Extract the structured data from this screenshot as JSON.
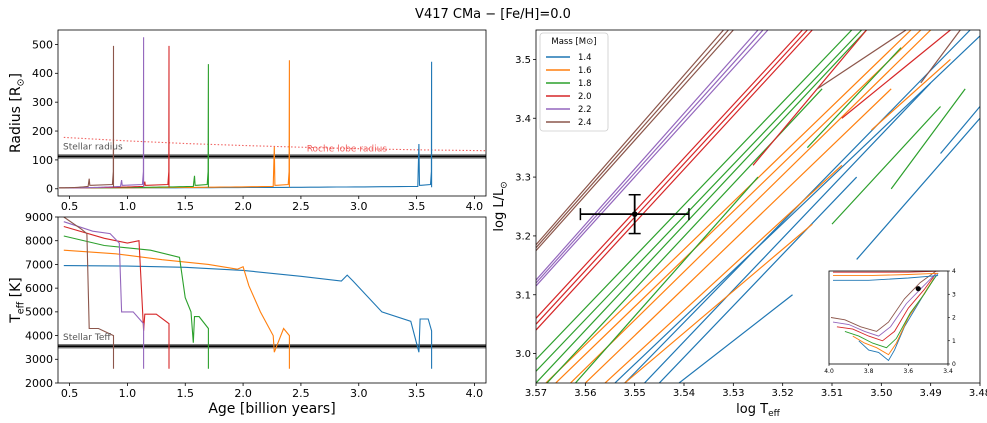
{
  "title": "V417 CMa − [Fe/H]=0.0",
  "legend": {
    "title": "Mass [M⊙]",
    "entries": [
      {
        "label": "1.4",
        "color": "#1f77b4"
      },
      {
        "label": "1.6",
        "color": "#ff7f0e"
      },
      {
        "label": "1.8",
        "color": "#2ca02c"
      },
      {
        "label": "2.0",
        "color": "#d62728"
      },
      {
        "label": "2.2",
        "color": "#9467bd"
      },
      {
        "label": "2.4",
        "color": "#8c564b"
      }
    ]
  },
  "chart_data": [
    {
      "id": "radius",
      "type": "line",
      "ylabel_main": "Radius [R",
      "ylabel_sub": "⊙",
      "ylabel_end": "]",
      "xlim": [
        0.4,
        4.1
      ],
      "ylim": [
        -25,
        550
      ],
      "xticks": [
        "0.5",
        "1.0",
        "1.5",
        "2.0",
        "2.5",
        "3.0",
        "3.5",
        "4.0"
      ],
      "yticks": [
        "0",
        "100",
        "200",
        "300",
        "400",
        "500"
      ],
      "annotations": [
        "Stellar radius",
        "Roche lobe radius"
      ],
      "stellar_radius": 112,
      "roche_lobe": {
        "x": [
          0.45,
          1.0,
          1.5,
          2.0,
          2.5,
          3.0,
          3.5,
          4.1
        ],
        "y": [
          178,
          166,
          157,
          150,
          144,
          139,
          135,
          132
        ]
      },
      "series": [
        {
          "name": "1.4",
          "end_age": 3.63,
          "spike_age": 3.52,
          "spike_value": 155,
          "max_value": 440
        },
        {
          "name": "1.6",
          "end_age": 2.4,
          "spike_age": 2.27,
          "spike_value": 145,
          "max_value": 445
        },
        {
          "name": "1.8",
          "end_age": 1.7,
          "spike_age": 1.58,
          "spike_value": 45,
          "max_value": 432
        },
        {
          "name": "2.0",
          "end_age": 1.36,
          "spike_age": 1.15,
          "spike_value": 25,
          "max_value": 495
        },
        {
          "name": "2.2",
          "end_age": 1.14,
          "spike_age": 0.95,
          "spike_value": 30,
          "max_value": 525
        },
        {
          "name": "2.4",
          "end_age": 0.88,
          "spike_age": 0.67,
          "spike_value": 35,
          "max_value": 495
        }
      ]
    },
    {
      "id": "teff",
      "type": "line",
      "ylabel_main": "T",
      "ylabel_sub": "eff",
      "ylabel_end": " [K]",
      "xlabel": "Age [billion years]",
      "xlim": [
        0.4,
        4.1
      ],
      "ylim": [
        2000,
        9000
      ],
      "xticks": [
        "0.5",
        "1.0",
        "1.5",
        "2.0",
        "2.5",
        "3.0",
        "3.5",
        "4.0"
      ],
      "yticks": [
        "2000",
        "3000",
        "4000",
        "5000",
        "6000",
        "7000",
        "8000",
        "9000"
      ],
      "annotations": [
        "Stellar Teff"
      ],
      "stellar_teff": 3550,
      "series": [
        {
          "name": "1.4",
          "x": [
            0.45,
            1.0,
            1.5,
            2.0,
            2.5,
            2.85,
            2.9,
            2.95,
            3.2,
            3.45,
            3.52,
            3.53,
            3.6,
            3.63,
            3.63
          ],
          "y": [
            6950,
            6930,
            6880,
            6750,
            6500,
            6300,
            6550,
            6300,
            5000,
            4600,
            3300,
            4700,
            4700,
            4200,
            2600
          ]
        },
        {
          "name": "1.6",
          "x": [
            0.45,
            0.9,
            1.3,
            1.7,
            1.95,
            2.0,
            2.05,
            2.15,
            2.26,
            2.27,
            2.35,
            2.4,
            2.4
          ],
          "y": [
            7600,
            7450,
            7200,
            7000,
            6800,
            6900,
            6100,
            5000,
            4000,
            3300,
            4300,
            4000,
            2600
          ]
        },
        {
          "name": "1.8",
          "x": [
            0.45,
            0.8,
            1.2,
            1.45,
            1.5,
            1.55,
            1.57,
            1.58,
            1.62,
            1.7,
            1.7
          ],
          "y": [
            8200,
            7800,
            7600,
            7300,
            5600,
            5000,
            3700,
            4800,
            4800,
            4300,
            2600
          ]
        },
        {
          "name": "2.0",
          "x": [
            0.45,
            0.8,
            1.0,
            1.1,
            1.14,
            1.15,
            1.25,
            1.36,
            1.36
          ],
          "y": [
            8600,
            8100,
            7900,
            8000,
            4200,
            4900,
            4900,
            4500,
            2600
          ]
        },
        {
          "name": "2.2",
          "x": [
            0.45,
            0.7,
            0.85,
            0.93,
            0.95,
            1.05,
            1.14,
            1.14
          ],
          "y": [
            8800,
            8400,
            8300,
            7900,
            5000,
            5000,
            4500,
            2600
          ]
        },
        {
          "name": "2.4",
          "x": [
            0.45,
            0.6,
            0.65,
            0.67,
            0.75,
            0.88,
            0.88
          ],
          "y": [
            9000,
            8500,
            8300,
            4300,
            4300,
            4000,
            2600
          ]
        }
      ]
    },
    {
      "id": "hrd",
      "type": "line",
      "xlabel_main": "log T",
      "xlabel_sub": "eff",
      "ylabel_main": "log L/L",
      "ylabel_sub": "⊙",
      "xlim": [
        3.57,
        3.48
      ],
      "ylim": [
        2.95,
        3.55
      ],
      "xticks": [
        "3.57",
        "3.56",
        "3.55",
        "3.54",
        "3.53",
        "3.52",
        "3.51",
        "3.50",
        "3.49",
        "3.48"
      ],
      "yticks": [
        "3.0",
        "3.1",
        "3.2",
        "3.3",
        "3.4",
        "3.5"
      ],
      "star": {
        "logT": 3.55,
        "logL": 3.237,
        "logT_err": 0.011,
        "logL_err": 0.033
      },
      "series": [
        {
          "name": "1.4",
          "lines": [
            [
              3.554,
              2.95,
              3.48,
              3.54
            ],
            [
              3.552,
              2.95,
              3.482,
              3.55
            ],
            [
              3.548,
              2.95,
              3.49,
              3.46
            ],
            [
              3.545,
              2.95,
              3.505,
              3.3
            ],
            [
              3.541,
              2.95,
              3.518,
              3.1
            ],
            [
              3.505,
              3.16,
              3.48,
              3.4
            ],
            [
              3.488,
              3.34,
              3.48,
              3.42
            ]
          ]
        },
        {
          "name": "1.6",
          "lines": [
            [
              3.568,
              2.95,
              3.494,
              3.55
            ],
            [
              3.566,
              2.95,
              3.492,
              3.55
            ],
            [
              3.563,
              2.95,
              3.49,
              3.55
            ],
            [
              3.56,
              2.95,
              3.498,
              3.45
            ],
            [
              3.556,
              2.95,
              3.508,
              3.32
            ],
            [
              3.552,
              2.95,
              3.514,
              3.22
            ],
            [
              3.502,
              3.38,
              3.486,
              3.5
            ]
          ]
        },
        {
          "name": "1.8",
          "lines": [
            [
              3.57,
              2.99,
              3.506,
              3.55
            ],
            [
              3.57,
              2.97,
              3.504,
              3.55
            ],
            [
              3.57,
              2.95,
              3.503,
              3.55
            ],
            [
              3.57,
              2.93,
              3.512,
              3.45
            ],
            [
              3.562,
              2.95,
              3.525,
              3.3
            ],
            [
              3.51,
              3.22,
              3.488,
              3.42
            ],
            [
              3.498,
              3.28,
              3.483,
              3.45
            ],
            [
              3.515,
              3.35,
              3.496,
              3.52
            ]
          ]
        },
        {
          "name": "2.0",
          "lines": [
            [
              3.57,
              3.06,
              3.516,
              3.55
            ],
            [
              3.57,
              3.05,
              3.515,
              3.55
            ],
            [
              3.57,
              3.04,
              3.514,
              3.55
            ],
            [
              3.526,
              3.32,
              3.503,
              3.55
            ],
            [
              3.508,
              3.4,
              3.486,
              3.55
            ]
          ]
        },
        {
          "name": "2.2",
          "lines": [
            [
              3.57,
              3.125,
              3.525,
              3.55
            ],
            [
              3.57,
              3.12,
              3.524,
              3.55
            ],
            [
              3.57,
              3.115,
              3.523,
              3.55
            ]
          ]
        },
        {
          "name": "2.4",
          "lines": [
            [
              3.57,
              3.185,
              3.532,
              3.55
            ],
            [
              3.57,
              3.18,
              3.531,
              3.55
            ],
            [
              3.57,
              3.175,
              3.53,
              3.55
            ],
            [
              3.513,
              3.45,
              3.495,
              3.55
            ],
            [
              3.492,
              3.46,
              3.484,
              3.55
            ]
          ]
        }
      ]
    },
    {
      "id": "inset",
      "type": "line",
      "xlim": [
        4.0,
        3.4
      ],
      "ylim": [
        0,
        4
      ],
      "xticks": [
        "4.0",
        "3.8",
        "3.6",
        "3.4"
      ],
      "yticks": [
        "0",
        "1",
        "2",
        "3",
        "4"
      ],
      "star": {
        "logT": 3.55,
        "logL": 3.24
      },
      "series": [
        {
          "name": "1.4",
          "x": [
            3.85,
            3.8,
            3.75,
            3.7,
            3.67,
            3.62,
            3.55,
            3.5,
            3.45
          ],
          "y": [
            1.0,
            0.6,
            0.5,
            0.15,
            0.6,
            1.6,
            2.6,
            3.3,
            3.9
          ]
        },
        {
          "name": "1.6",
          "x": [
            3.88,
            3.82,
            3.76,
            3.7,
            3.66,
            3.6,
            3.53,
            3.47
          ],
          "y": [
            1.2,
            0.9,
            0.7,
            0.4,
            0.9,
            2.0,
            2.9,
            3.7
          ]
        },
        {
          "name": "1.8",
          "x": [
            3.92,
            3.85,
            3.78,
            3.71,
            3.66,
            3.59,
            3.52,
            3.46
          ],
          "y": [
            1.4,
            1.2,
            0.9,
            0.7,
            1.1,
            2.2,
            3.0,
            3.8
          ]
        },
        {
          "name": "2.0",
          "x": [
            3.96,
            3.88,
            3.8,
            3.73,
            3.67,
            3.6,
            3.52,
            3.46
          ],
          "y": [
            1.6,
            1.5,
            1.2,
            1.0,
            1.4,
            2.4,
            3.2,
            3.9
          ]
        },
        {
          "name": "2.2",
          "x": [
            3.98,
            3.9,
            3.82,
            3.75,
            3.69,
            3.61,
            3.53,
            3.46
          ],
          "y": [
            1.8,
            1.7,
            1.4,
            1.2,
            1.6,
            2.6,
            3.3,
            3.9
          ]
        },
        {
          "name": "2.4",
          "x": [
            3.99,
            3.92,
            3.84,
            3.76,
            3.7,
            3.62,
            3.54,
            3.46
          ],
          "y": [
            2.0,
            1.9,
            1.6,
            1.4,
            1.8,
            2.8,
            3.5,
            4.0
          ]
        },
        {
          "name": "1.4",
          "x": [
            3.98,
            3.8,
            3.6,
            3.45
          ],
          "y": [
            3.6,
            3.6,
            3.7,
            3.8
          ]
        },
        {
          "name": "1.6",
          "x": [
            3.98,
            3.8,
            3.6,
            3.45
          ],
          "y": [
            3.8,
            3.8,
            3.85,
            3.9
          ]
        },
        {
          "name": "2.0",
          "x": [
            3.98,
            3.8,
            3.6,
            3.44
          ],
          "y": [
            3.95,
            3.95,
            3.95,
            4.0
          ]
        },
        {
          "name": "2.4",
          "x": [
            3.98,
            3.8,
            3.6,
            3.44
          ],
          "y": [
            4.05,
            4.05,
            4.05,
            4.05
          ]
        }
      ]
    }
  ]
}
